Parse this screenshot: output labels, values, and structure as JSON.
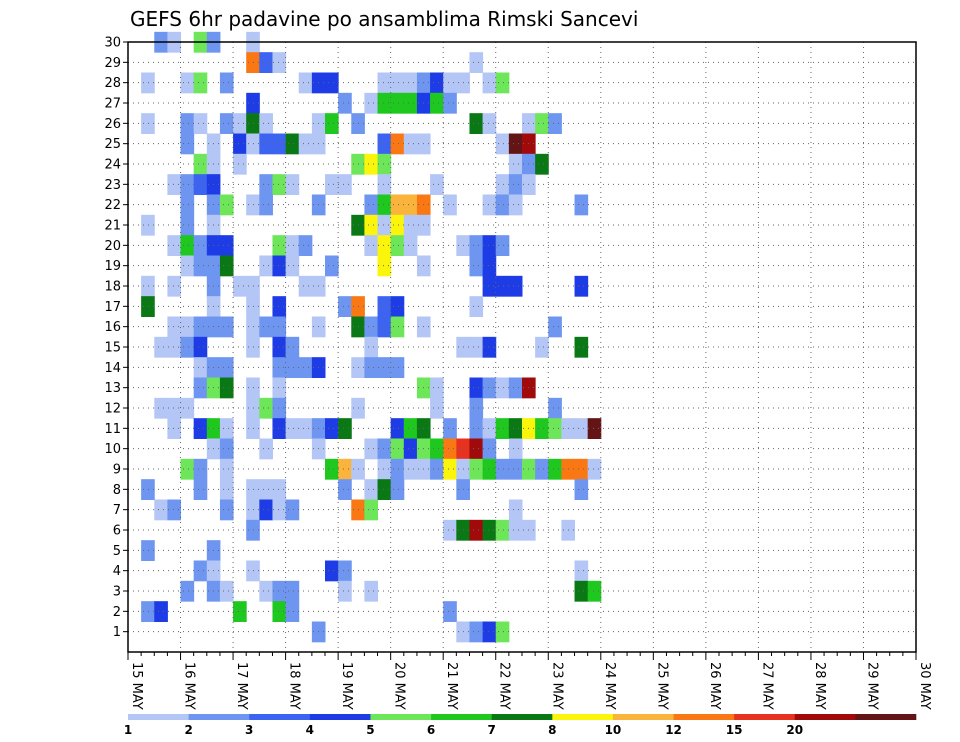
{
  "chart_data": {
    "type": "heatmap",
    "title": "GEFS 6hr padavine po ansamblima Rimski Sancevi",
    "xlabel": "",
    "ylabel": "",
    "x_ticks": [
      "15 MAY",
      "16 MAY",
      "17 MAY",
      "18 MAY",
      "19 MAY",
      "20 MAY",
      "21 MAY",
      "22 MAY",
      "23 MAY",
      "24 MAY",
      "25 MAY",
      "26 MAY",
      "27 MAY",
      "28 MAY",
      "29 MAY",
      "30 MAY"
    ],
    "x_range": [
      0,
      60
    ],
    "y_ticks": [
      1,
      2,
      3,
      4,
      5,
      6,
      7,
      8,
      9,
      10,
      11,
      12,
      13,
      14,
      15,
      16,
      17,
      18,
      19,
      20,
      21,
      22,
      23,
      24,
      25,
      26,
      27,
      28,
      29,
      30
    ],
    "y_range": [
      0,
      30
    ],
    "grid": true,
    "colorbar": {
      "labels": [
        "1",
        "2",
        "3",
        "4",
        "5",
        "6",
        "7",
        "8",
        "10",
        "12",
        "15",
        "20"
      ],
      "colors": [
        "#b4c6f5",
        "#6e96f0",
        "#3c64f0",
        "#1e3ce6",
        "#6ee65a",
        "#1ec81e",
        "#0a7814",
        "#faf50a",
        "#fab43c",
        "#fa7814",
        "#e6321e",
        "#a00a0a",
        "#641414"
      ]
    },
    "cells": [
      [
        1,
        30,
        1
      ],
      [
        2,
        30,
        0
      ],
      [
        4,
        30,
        4
      ],
      [
        5,
        30,
        1
      ],
      [
        8,
        30,
        0
      ],
      [
        8,
        29,
        9
      ],
      [
        9,
        29,
        2
      ],
      [
        10,
        29,
        0
      ],
      [
        25,
        29,
        0
      ],
      [
        0,
        28,
        0
      ],
      [
        3,
        28,
        0
      ],
      [
        4,
        28,
        4
      ],
      [
        6,
        28,
        1
      ],
      [
        12,
        28,
        0
      ],
      [
        13,
        28,
        3
      ],
      [
        14,
        28,
        3
      ],
      [
        18,
        28,
        0
      ],
      [
        19,
        28,
        0
      ],
      [
        20,
        28,
        0
      ],
      [
        21,
        28,
        1
      ],
      [
        22,
        28,
        3
      ],
      [
        23,
        28,
        0
      ],
      [
        24,
        28,
        0
      ],
      [
        26,
        28,
        0
      ],
      [
        27,
        28,
        4
      ],
      [
        8,
        27,
        3
      ],
      [
        15,
        27,
        1
      ],
      [
        17,
        27,
        0
      ],
      [
        18,
        27,
        5
      ],
      [
        19,
        27,
        5
      ],
      [
        20,
        27,
        5
      ],
      [
        21,
        27,
        3
      ],
      [
        22,
        27,
        5
      ],
      [
        23,
        27,
        1
      ],
      [
        0,
        26,
        0
      ],
      [
        3,
        26,
        1
      ],
      [
        4,
        26,
        0
      ],
      [
        6,
        26,
        1
      ],
      [
        7,
        26,
        0
      ],
      [
        8,
        26,
        6
      ],
      [
        9,
        26,
        0
      ],
      [
        13,
        26,
        0
      ],
      [
        14,
        26,
        5
      ],
      [
        16,
        26,
        1
      ],
      [
        25,
        26,
        6
      ],
      [
        26,
        26,
        0
      ],
      [
        29,
        26,
        0
      ],
      [
        30,
        26,
        4
      ],
      [
        31,
        26,
        1
      ],
      [
        3,
        25,
        1
      ],
      [
        5,
        25,
        0
      ],
      [
        7,
        25,
        3
      ],
      [
        8,
        25,
        0
      ],
      [
        9,
        25,
        2
      ],
      [
        10,
        25,
        2
      ],
      [
        11,
        25,
        6
      ],
      [
        12,
        25,
        0
      ],
      [
        13,
        25,
        0
      ],
      [
        18,
        25,
        2
      ],
      [
        19,
        25,
        9
      ],
      [
        20,
        25,
        0
      ],
      [
        21,
        25,
        0
      ],
      [
        27,
        25,
        0
      ],
      [
        28,
        25,
        12
      ],
      [
        29,
        25,
        11
      ],
      [
        4,
        24,
        4
      ],
      [
        5,
        24,
        0
      ],
      [
        7,
        24,
        0
      ],
      [
        16,
        24,
        4
      ],
      [
        17,
        24,
        7
      ],
      [
        18,
        24,
        4
      ],
      [
        28,
        24,
        0
      ],
      [
        29,
        24,
        1
      ],
      [
        30,
        24,
        6
      ],
      [
        2,
        23,
        0
      ],
      [
        3,
        23,
        1
      ],
      [
        4,
        23,
        2
      ],
      [
        5,
        23,
        3
      ],
      [
        9,
        23,
        1
      ],
      [
        10,
        23,
        4
      ],
      [
        11,
        23,
        0
      ],
      [
        14,
        23,
        0
      ],
      [
        15,
        23,
        0
      ],
      [
        18,
        23,
        0
      ],
      [
        22,
        23,
        0
      ],
      [
        27,
        23,
        0
      ],
      [
        28,
        23,
        1
      ],
      [
        29,
        23,
        0
      ],
      [
        3,
        22,
        1
      ],
      [
        5,
        22,
        1
      ],
      [
        6,
        22,
        4
      ],
      [
        8,
        22,
        0
      ],
      [
        9,
        22,
        1
      ],
      [
        13,
        22,
        1
      ],
      [
        17,
        22,
        1
      ],
      [
        18,
        22,
        5
      ],
      [
        19,
        22,
        8
      ],
      [
        20,
        22,
        8
      ],
      [
        21,
        22,
        9
      ],
      [
        23,
        22,
        0
      ],
      [
        26,
        22,
        0
      ],
      [
        27,
        22,
        1
      ],
      [
        28,
        22,
        0
      ],
      [
        33,
        22,
        1
      ],
      [
        0,
        21,
        0
      ],
      [
        3,
        21,
        1
      ],
      [
        5,
        21,
        0
      ],
      [
        16,
        21,
        6
      ],
      [
        17,
        21,
        7
      ],
      [
        18,
        21,
        0
      ],
      [
        19,
        21,
        7
      ],
      [
        20,
        21,
        0
      ],
      [
        21,
        21,
        0
      ],
      [
        2,
        20,
        0
      ],
      [
        3,
        20,
        5
      ],
      [
        4,
        20,
        1
      ],
      [
        5,
        20,
        3
      ],
      [
        6,
        20,
        3
      ],
      [
        10,
        20,
        4
      ],
      [
        11,
        20,
        0
      ],
      [
        12,
        20,
        1
      ],
      [
        17,
        20,
        0
      ],
      [
        18,
        20,
        7
      ],
      [
        19,
        20,
        4
      ],
      [
        20,
        20,
        0
      ],
      [
        24,
        20,
        0
      ],
      [
        25,
        20,
        1
      ],
      [
        26,
        20,
        3
      ],
      [
        27,
        20,
        1
      ],
      [
        3,
        19,
        0
      ],
      [
        4,
        19,
        1
      ],
      [
        5,
        19,
        1
      ],
      [
        6,
        19,
        6
      ],
      [
        9,
        19,
        0
      ],
      [
        10,
        19,
        3
      ],
      [
        11,
        19,
        0
      ],
      [
        14,
        19,
        1
      ],
      [
        18,
        19,
        7
      ],
      [
        21,
        19,
        0
      ],
      [
        25,
        19,
        1
      ],
      [
        26,
        19,
        3
      ],
      [
        0,
        18,
        0
      ],
      [
        2,
        18,
        0
      ],
      [
        5,
        18,
        1
      ],
      [
        7,
        18,
        0
      ],
      [
        8,
        18,
        0
      ],
      [
        12,
        18,
        0
      ],
      [
        13,
        18,
        0
      ],
      [
        26,
        18,
        3
      ],
      [
        27,
        18,
        3
      ],
      [
        28,
        18,
        3
      ],
      [
        33,
        18,
        3
      ],
      [
        0,
        17,
        6
      ],
      [
        5,
        17,
        0
      ],
      [
        8,
        17,
        0
      ],
      [
        10,
        17,
        3
      ],
      [
        15,
        17,
        1
      ],
      [
        16,
        17,
        9
      ],
      [
        18,
        17,
        2
      ],
      [
        19,
        17,
        3
      ],
      [
        25,
        17,
        0
      ],
      [
        2,
        16,
        0
      ],
      [
        3,
        16,
        0
      ],
      [
        4,
        16,
        1
      ],
      [
        5,
        16,
        1
      ],
      [
        6,
        16,
        1
      ],
      [
        8,
        16,
        0
      ],
      [
        9,
        16,
        1
      ],
      [
        10,
        16,
        1
      ],
      [
        13,
        16,
        0
      ],
      [
        16,
        16,
        6
      ],
      [
        17,
        16,
        1
      ],
      [
        18,
        16,
        2
      ],
      [
        19,
        16,
        4
      ],
      [
        21,
        16,
        0
      ],
      [
        31,
        16,
        1
      ],
      [
        1,
        15,
        0
      ],
      [
        2,
        15,
        0
      ],
      [
        3,
        15,
        1
      ],
      [
        4,
        15,
        3
      ],
      [
        8,
        15,
        0
      ],
      [
        10,
        15,
        3
      ],
      [
        11,
        15,
        1
      ],
      [
        17,
        15,
        0
      ],
      [
        24,
        15,
        0
      ],
      [
        25,
        15,
        0
      ],
      [
        26,
        15,
        3
      ],
      [
        30,
        15,
        0
      ],
      [
        33,
        15,
        6
      ],
      [
        4,
        14,
        0
      ],
      [
        5,
        14,
        1
      ],
      [
        6,
        14,
        1
      ],
      [
        10,
        14,
        1
      ],
      [
        11,
        14,
        1
      ],
      [
        12,
        14,
        1
      ],
      [
        13,
        14,
        3
      ],
      [
        16,
        14,
        0
      ],
      [
        17,
        14,
        1
      ],
      [
        18,
        14,
        1
      ],
      [
        19,
        14,
        1
      ],
      [
        4,
        13,
        1
      ],
      [
        5,
        13,
        4
      ],
      [
        6,
        13,
        6
      ],
      [
        8,
        13,
        0
      ],
      [
        10,
        13,
        0
      ],
      [
        21,
        13,
        4
      ],
      [
        22,
        13,
        0
      ],
      [
        25,
        13,
        3
      ],
      [
        26,
        13,
        1
      ],
      [
        27,
        13,
        0
      ],
      [
        28,
        13,
        1
      ],
      [
        29,
        13,
        11
      ],
      [
        1,
        12,
        0
      ],
      [
        2,
        12,
        0
      ],
      [
        3,
        12,
        0
      ],
      [
        8,
        12,
        0
      ],
      [
        9,
        12,
        4
      ],
      [
        10,
        12,
        1
      ],
      [
        16,
        12,
        0
      ],
      [
        22,
        12,
        0
      ],
      [
        25,
        12,
        1
      ],
      [
        31,
        12,
        1
      ],
      [
        2,
        11,
        0
      ],
      [
        4,
        11,
        3
      ],
      [
        5,
        11,
        5
      ],
      [
        6,
        11,
        0
      ],
      [
        8,
        11,
        0
      ],
      [
        10,
        11,
        3
      ],
      [
        11,
        11,
        0
      ],
      [
        12,
        11,
        0
      ],
      [
        13,
        11,
        1
      ],
      [
        14,
        11,
        3
      ],
      [
        15,
        11,
        6
      ],
      [
        19,
        11,
        3
      ],
      [
        20,
        11,
        5
      ],
      [
        21,
        11,
        6
      ],
      [
        23,
        11,
        1
      ],
      [
        25,
        11,
        1
      ],
      [
        26,
        11,
        0
      ],
      [
        27,
        11,
        5
      ],
      [
        28,
        11,
        6
      ],
      [
        29,
        11,
        7
      ],
      [
        30,
        11,
        5
      ],
      [
        31,
        11,
        4
      ],
      [
        32,
        11,
        0
      ],
      [
        33,
        11,
        0
      ],
      [
        34,
        11,
        12
      ],
      [
        5,
        10,
        0
      ],
      [
        6,
        10,
        1
      ],
      [
        9,
        10,
        0
      ],
      [
        13,
        10,
        0
      ],
      [
        17,
        10,
        0
      ],
      [
        18,
        10,
        1
      ],
      [
        19,
        10,
        4
      ],
      [
        20,
        10,
        3
      ],
      [
        21,
        10,
        4
      ],
      [
        22,
        10,
        5
      ],
      [
        23,
        10,
        9
      ],
      [
        24,
        10,
        10
      ],
      [
        25,
        10,
        11
      ],
      [
        26,
        10,
        1
      ],
      [
        28,
        10,
        0
      ],
      [
        3,
        9,
        4
      ],
      [
        4,
        9,
        1
      ],
      [
        6,
        9,
        0
      ],
      [
        14,
        9,
        5
      ],
      [
        15,
        9,
        8
      ],
      [
        16,
        9,
        0
      ],
      [
        18,
        9,
        0
      ],
      [
        19,
        9,
        1
      ],
      [
        20,
        9,
        0
      ],
      [
        21,
        9,
        0
      ],
      [
        22,
        9,
        1
      ],
      [
        23,
        9,
        7
      ],
      [
        24,
        9,
        0
      ],
      [
        25,
        9,
        4
      ],
      [
        26,
        9,
        5
      ],
      [
        27,
        9,
        1
      ],
      [
        28,
        9,
        1
      ],
      [
        29,
        9,
        4
      ],
      [
        30,
        9,
        1
      ],
      [
        31,
        9,
        5
      ],
      [
        32,
        9,
        9
      ],
      [
        33,
        9,
        9
      ],
      [
        34,
        9,
        0
      ],
      [
        0,
        8,
        1
      ],
      [
        4,
        8,
        1
      ],
      [
        6,
        8,
        0
      ],
      [
        8,
        8,
        0
      ],
      [
        9,
        8,
        0
      ],
      [
        10,
        8,
        0
      ],
      [
        15,
        8,
        1
      ],
      [
        17,
        8,
        0
      ],
      [
        18,
        8,
        6
      ],
      [
        19,
        8,
        1
      ],
      [
        24,
        8,
        1
      ],
      [
        33,
        8,
        1
      ],
      [
        1,
        7,
        0
      ],
      [
        2,
        7,
        1
      ],
      [
        6,
        7,
        1
      ],
      [
        8,
        7,
        0
      ],
      [
        9,
        7,
        3
      ],
      [
        10,
        7,
        0
      ],
      [
        11,
        7,
        1
      ],
      [
        16,
        7,
        9
      ],
      [
        17,
        7,
        4
      ],
      [
        28,
        7,
        0
      ],
      [
        8,
        6,
        1
      ],
      [
        23,
        6,
        0
      ],
      [
        24,
        6,
        6
      ],
      [
        25,
        6,
        11
      ],
      [
        26,
        6,
        6
      ],
      [
        27,
        6,
        4
      ],
      [
        28,
        6,
        0
      ],
      [
        29,
        6,
        0
      ],
      [
        32,
        6,
        0
      ],
      [
        0,
        5,
        1
      ],
      [
        5,
        5,
        1
      ],
      [
        4,
        4,
        1
      ],
      [
        5,
        4,
        0
      ],
      [
        8,
        4,
        0
      ],
      [
        14,
        4,
        3
      ],
      [
        15,
        4,
        1
      ],
      [
        33,
        4,
        0
      ],
      [
        3,
        3,
        1
      ],
      [
        5,
        3,
        1
      ],
      [
        6,
        3,
        0
      ],
      [
        9,
        3,
        0
      ],
      [
        10,
        3,
        1
      ],
      [
        11,
        3,
        1
      ],
      [
        15,
        3,
        0
      ],
      [
        17,
        3,
        0
      ],
      [
        33,
        3,
        6
      ],
      [
        34,
        3,
        5
      ],
      [
        0,
        2,
        1
      ],
      [
        1,
        2,
        3
      ],
      [
        7,
        2,
        5
      ],
      [
        10,
        2,
        5
      ],
      [
        11,
        2,
        1
      ],
      [
        23,
        2,
        1
      ],
      [
        13,
        1,
        1
      ],
      [
        24,
        1,
        0
      ],
      [
        25,
        1,
        1
      ],
      [
        26,
        1,
        3
      ],
      [
        27,
        1,
        4
      ]
    ]
  }
}
